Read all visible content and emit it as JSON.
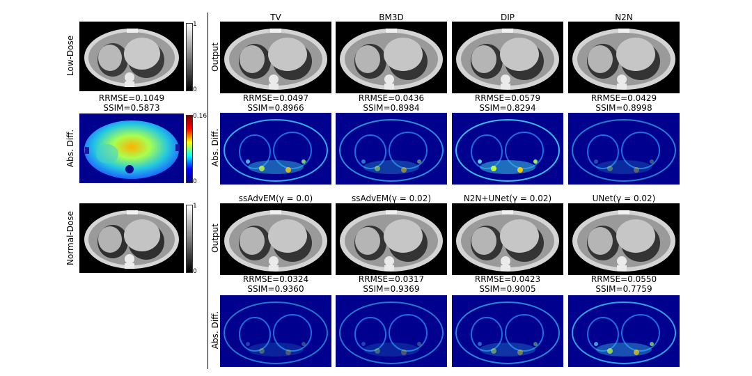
{
  "left": {
    "low_dose_label": "Low-Dose",
    "low_cbar_max": "1",
    "low_cbar_min": "0",
    "metric_rrmse": "RRMSE=0.1049",
    "metric_ssim": "SSIM=0.5873",
    "absdiff_label": "Abs. Diff.",
    "diff_cbar_max": "0.16",
    "diff_cbar_min": "0",
    "normal_dose_label": "Normal-Dose",
    "normal_cbar_max": "1",
    "normal_cbar_min": "0"
  },
  "row_labels": {
    "output_top": "Output",
    "absdiff_top": "Abs. Diff.",
    "output_bottom": "Output",
    "absdiff_bottom": "Abs. Diff."
  },
  "top_methods": [
    {
      "name": "TV",
      "rrmse": "RRMSE=0.0497",
      "ssim": "SSIM=0.8966"
    },
    {
      "name": "BM3D",
      "rrmse": "RRMSE=0.0436",
      "ssim": "SSIM=0.8984"
    },
    {
      "name": "DIP",
      "rrmse": "RRMSE=0.0579",
      "ssim": "SSIM=0.8294"
    },
    {
      "name": "N2N",
      "rrmse": "RRMSE=0.0429",
      "ssim": "SSIM=0.8998"
    }
  ],
  "bottom_methods": [
    {
      "name": "ssAdvEM(γ = 0.0)",
      "rrmse": "RRMSE=0.0324",
      "ssim": "SSIM=0.9360"
    },
    {
      "name": "ssAdvEM(γ = 0.02)",
      "rrmse": "RRMSE=0.0317",
      "ssim": "SSIM=0.9369"
    },
    {
      "name": "N2N+UNet(γ = 0.02)",
      "rrmse": "RRMSE=0.0423",
      "ssim": "SSIM=0.9005"
    },
    {
      "name": "UNet(γ = 0.02)",
      "rrmse": "RRMSE=0.0550",
      "ssim": "SSIM=0.7759"
    }
  ],
  "colors": {
    "jet_dark_blue": "#00008f",
    "ct_background": "#000000",
    "divider": "#000000"
  }
}
